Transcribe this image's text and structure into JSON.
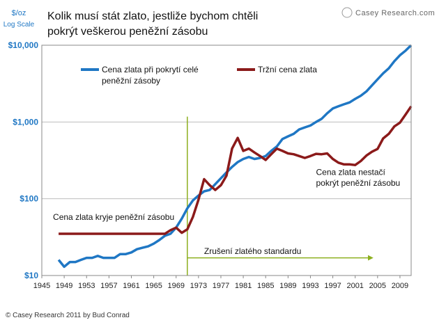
{
  "chart_data": {
    "type": "line",
    "title": "Kolik musí stát zlato, jestliže bychom chtěli pokrýt veškerou peněžní zásobu",
    "title_lines": [
      "Kolik musí stát zlato, jestliže bychom chtěli",
      "pokrýt veškerou peněžní zásobu"
    ],
    "ylabel_lines": [
      "$/oz",
      "Log Scale"
    ],
    "yscale": "log",
    "ylim": [
      10,
      10000
    ],
    "xlim": [
      1945,
      2011
    ],
    "y_ticks": [
      {
        "value": 10,
        "label": "$10"
      },
      {
        "value": 100,
        "label": "$100"
      },
      {
        "value": 1000,
        "label": "$1,000"
      },
      {
        "value": 10000,
        "label": "$10,000"
      }
    ],
    "x_ticks": [
      1945,
      1949,
      1953,
      1957,
      1961,
      1965,
      1969,
      1973,
      1977,
      1981,
      1985,
      1989,
      1993,
      1997,
      2001,
      2005,
      2009
    ],
    "grid": "horizontal",
    "series": [
      {
        "name": "Cena zlata při pokrytí celé peněžní zásoby",
        "legend_lines": [
          "Cena zlata při pokrytí celé",
          "peněžní zásoby"
        ],
        "color": "#1f77c4",
        "x": [
          1948,
          1949,
          1950,
          1951,
          1952,
          1953,
          1954,
          1955,
          1956,
          1957,
          1958,
          1959,
          1960,
          1961,
          1962,
          1963,
          1964,
          1965,
          1966,
          1967,
          1968,
          1969,
          1970,
          1971,
          1972,
          1973,
          1974,
          1975,
          1976,
          1977,
          1978,
          1979,
          1980,
          1981,
          1982,
          1983,
          1984,
          1985,
          1986,
          1987,
          1988,
          1989,
          1990,
          1991,
          1992,
          1993,
          1994,
          1995,
          1996,
          1997,
          1998,
          1999,
          2000,
          2001,
          2002,
          2003,
          2004,
          2005,
          2006,
          2007,
          2008,
          2009,
          2010,
          2011
        ],
        "values": [
          16,
          13,
          15,
          15,
          16,
          17,
          17,
          18,
          17,
          17,
          17,
          19,
          19,
          20,
          22,
          23,
          24,
          26,
          29,
          33,
          35,
          42,
          55,
          75,
          95,
          110,
          125,
          130,
          155,
          185,
          220,
          260,
          300,
          330,
          350,
          330,
          340,
          360,
          420,
          480,
          600,
          650,
          700,
          800,
          850,
          900,
          1000,
          1100,
          1300,
          1500,
          1600,
          1700,
          1800,
          2000,
          2200,
          2500,
          3000,
          3600,
          4300,
          5000,
          6200,
          7400,
          8500,
          10000
        ]
      },
      {
        "name": "Tržní cena zlata",
        "legend_lines": [
          "Tržní cena zlata"
        ],
        "color": "#8b1a1a",
        "x": [
          1948,
          1950,
          1955,
          1960,
          1965,
          1967,
          1968,
          1969,
          1970,
          1971,
          1972,
          1973,
          1974,
          1975,
          1976,
          1977,
          1978,
          1979,
          1980,
          1981,
          1982,
          1983,
          1984,
          1985,
          1986,
          1987,
          1988,
          1989,
          1990,
          1991,
          1992,
          1993,
          1994,
          1995,
          1996,
          1997,
          1998,
          1999,
          2000,
          2001,
          2002,
          2003,
          2004,
          2005,
          2006,
          2007,
          2008,
          2009,
          2010,
          2011
        ],
        "values": [
          35,
          35,
          35,
          35,
          35,
          35,
          39,
          42,
          36,
          40,
          58,
          97,
          180,
          150,
          130,
          150,
          200,
          450,
          620,
          420,
          450,
          400,
          360,
          320,
          380,
          450,
          420,
          390,
          380,
          360,
          340,
          360,
          385,
          380,
          390,
          330,
          295,
          280,
          280,
          275,
          310,
          365,
          410,
          445,
          610,
          700,
          875,
          980,
          1250,
          1600
        ]
      }
    ],
    "annotations": [
      {
        "text": "Cena zlata kryje peněžní zásobu",
        "at_year": 1947,
        "at_value": 53
      },
      {
        "text": "Cena zlata nestačí",
        "at_year": 1994,
        "at_value": 205
      },
      {
        "text": "pokrýt peněžní zásobu",
        "at_year": 1994,
        "at_value": 148
      },
      {
        "text": "Zrušení zlatého standardu",
        "at_year": 1974,
        "at_value": 19
      }
    ],
    "event_line": {
      "year": 1971,
      "color": "#8db01f",
      "arrow_end_year": 2004,
      "arrow_value": 17
    }
  },
  "branding": {
    "logo_text": "Casey Research.com",
    "footer": "© Casey Research 2011 by Bud Conrad"
  }
}
